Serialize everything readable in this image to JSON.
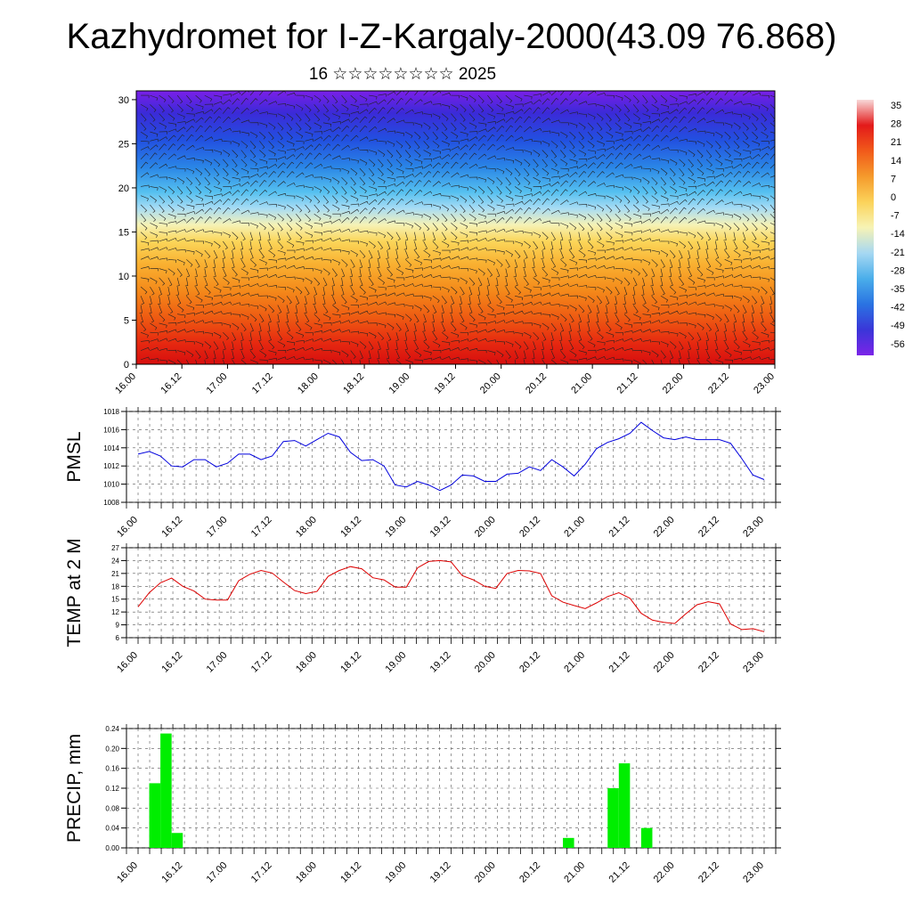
{
  "header": {
    "title": "Kazhydromet for I-Z-Kargaly-2000(43.09 76.868)",
    "subtitle": "16 ☆☆☆☆☆☆☆☆ 2025"
  },
  "time_labels": [
    "16.00",
    "16.12",
    "17.00",
    "17.12",
    "18.00",
    "18.12",
    "19.00",
    "19.12",
    "20.00",
    "20.12",
    "21.00",
    "21.12",
    "22.00",
    "22.12",
    "23.00"
  ],
  "colorbar": {
    "labels": [
      "35",
      "28",
      "21",
      "14",
      "7",
      "0",
      "-7",
      "-14",
      "-21",
      "-28",
      "-35",
      "-42",
      "-49",
      "-56"
    ]
  },
  "chart_data": [
    {
      "type": "heatmap",
      "name": "temperature-wind-cross-section",
      "x_ticks": [
        "16.00",
        "16.12",
        "17.00",
        "17.12",
        "18.00",
        "18.12",
        "19.00",
        "19.12",
        "20.00",
        "20.12",
        "21.00",
        "21.12",
        "22.00",
        "22.12",
        "23.00"
      ],
      "y_ticks": [
        "0",
        "5",
        "10",
        "15",
        "20",
        "25",
        "30"
      ],
      "ylim": [
        0,
        31
      ],
      "color_levels": [
        35,
        28,
        21,
        14,
        7,
        0,
        -7,
        -14,
        -21,
        -28,
        -35,
        -42,
        -49,
        -56
      ],
      "overlay": "wind barbs"
    },
    {
      "type": "line",
      "ylabel": "PMSL",
      "ylim": [
        1008,
        1018
      ],
      "y_ticks": [
        "1008",
        "1010",
        "1012",
        "1014",
        "1016",
        "1018"
      ],
      "x_ticks": [
        "16.00",
        "16.12",
        "17.00",
        "17.12",
        "18.00",
        "18.12",
        "19.00",
        "19.12",
        "20.00",
        "20.12",
        "21.00",
        "21.12",
        "22.00",
        "22.12",
        "23.00"
      ],
      "color": "#0000dd",
      "values": [
        1013.3,
        1013.6,
        1013.1,
        1012.0,
        1011.9,
        1012.7,
        1012.7,
        1011.9,
        1012.3,
        1013.3,
        1013.3,
        1012.7,
        1013.1,
        1014.7,
        1014.8,
        1014.2,
        1014.9,
        1015.6,
        1015.2,
        1013.5,
        1012.6,
        1012.7,
        1012.0,
        1009.9,
        1009.7,
        1010.3,
        1009.9,
        1009.3,
        1009.9,
        1011.0,
        1010.9,
        1010.3,
        1010.3,
        1011.1,
        1011.2,
        1011.9,
        1011.5,
        1012.7,
        1011.9,
        1010.9,
        1012.2,
        1013.9,
        1014.6,
        1015.0,
        1015.6,
        1016.8,
        1015.9,
        1015.1,
        1014.9,
        1015.2,
        1014.9,
        1014.9,
        1014.9,
        1014.5,
        1012.8,
        1011.0,
        1010.5
      ]
    },
    {
      "type": "line",
      "ylabel": "TEMP at 2 M",
      "ylim": [
        6,
        27
      ],
      "y_ticks": [
        "6",
        "9",
        "12",
        "15",
        "18",
        "21",
        "24",
        "27"
      ],
      "x_ticks": [
        "16.00",
        "16.12",
        "17.00",
        "17.12",
        "18.00",
        "18.12",
        "19.00",
        "19.12",
        "20.00",
        "20.12",
        "21.00",
        "21.12",
        "22.00",
        "22.12",
        "23.00"
      ],
      "color": "#dd0000",
      "values": [
        13.2,
        16.5,
        18.8,
        19.9,
        18.0,
        16.9,
        15.0,
        14.8,
        14.8,
        19.3,
        20.8,
        21.7,
        21.1,
        19.0,
        17.0,
        16.3,
        16.8,
        20.3,
        21.7,
        22.6,
        22.1,
        20.0,
        19.5,
        17.8,
        17.8,
        22.3,
        23.8,
        24.0,
        23.7,
        20.5,
        19.5,
        18.0,
        17.5,
        21.0,
        21.7,
        21.6,
        21.0,
        15.8,
        14.3,
        13.5,
        12.8,
        14.1,
        15.6,
        16.5,
        15.2,
        11.7,
        10.1,
        9.6,
        9.3,
        11.6,
        13.7,
        14.4,
        13.9,
        9.2,
        7.9,
        8.1,
        7.4
      ]
    },
    {
      "type": "bar",
      "ylabel": "PRECIP, mm",
      "ylim": [
        0,
        0.24
      ],
      "y_ticks": [
        "0.00",
        "0.04",
        "0.08",
        "0.12",
        "0.16",
        "0.20",
        "0.24"
      ],
      "x_ticks": [
        "16.00",
        "16.12",
        "17.00",
        "17.12",
        "18.00",
        "18.12",
        "19.00",
        "19.12",
        "20.00",
        "20.12",
        "21.00",
        "21.12",
        "22.00",
        "22.12",
        "23.00"
      ],
      "color": "#00ee00",
      "steps_per_day": 8,
      "values": [
        0,
        0.13,
        0.23,
        0.03,
        0,
        0,
        0,
        0,
        0,
        0,
        0,
        0,
        0,
        0,
        0,
        0,
        0,
        0,
        0,
        0,
        0,
        0,
        0,
        0,
        0,
        0,
        0,
        0,
        0,
        0,
        0,
        0,
        0,
        0,
        0,
        0,
        0,
        0,
        0.02,
        0,
        0,
        0,
        0.12,
        0.17,
        0,
        0.04,
        0,
        0,
        0,
        0,
        0,
        0,
        0,
        0,
        0,
        0
      ]
    }
  ]
}
